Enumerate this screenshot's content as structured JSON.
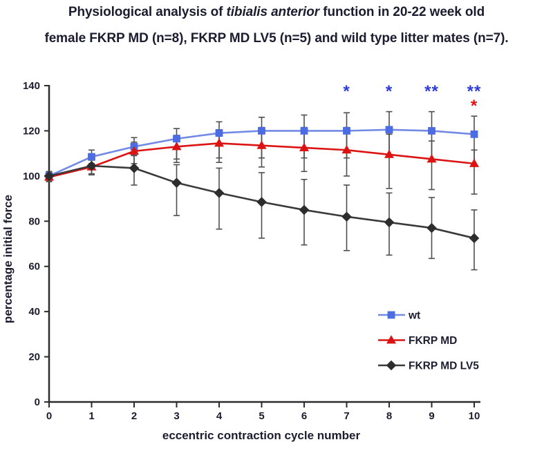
{
  "title": {
    "line1_pre": "Physiological analysis of ",
    "line1_italic": "tibialis anterior",
    "line1_post": " function in 20-22 week old",
    "line2": "female FKRP MD (n=8), FKRP MD LV5 (n=5) and wild type litter mates (n=7)."
  },
  "colors": {
    "text": "#1c1c30",
    "axis": "#2b2b2b",
    "error_bar": "#4f4f4f",
    "annotation_blue": "#2e3cd9",
    "annotation_red": "#e81010",
    "background": "#ffffff"
  },
  "chart_data": {
    "type": "line",
    "title": "Physiological analysis of tibialis anterior function in 20-22 week old female FKRP MD (n=8), FKRP MD LV5 (n=5) and wild type litter mates (n=7).",
    "xlabel": "eccentric contraction cycle number",
    "ylabel": "percentage initial force",
    "x": [
      0,
      1,
      2,
      3,
      4,
      5,
      6,
      7,
      8,
      9,
      10
    ],
    "xlim": [
      0,
      10
    ],
    "ylim": [
      0,
      140
    ],
    "ytick_step": 20,
    "yticks": [
      0,
      20,
      40,
      60,
      80,
      100,
      120,
      140
    ],
    "grid": false,
    "legend_position": "inside right",
    "error_bars": true,
    "series": [
      {
        "name": "wt",
        "marker": "square",
        "line_color": "#7389e6",
        "marker_color": "#4b6ce2",
        "values": [
          100,
          108.5,
          113,
          116.5,
          119,
          120,
          120,
          120,
          120.5,
          120,
          118.5
        ],
        "err_up": [
          2,
          3,
          4,
          4.5,
          5,
          6,
          7,
          8,
          8,
          8.5,
          8
        ],
        "err_down": [
          2,
          3,
          4,
          9,
          11,
          12,
          12,
          12,
          12,
          12.5,
          14
        ]
      },
      {
        "name": "FKRP MD",
        "marker": "triangle",
        "line_color": "#dc1313",
        "marker_color": "#dc1313",
        "values": [
          99.5,
          104,
          111,
          113,
          114.5,
          113.5,
          112.5,
          111.5,
          109.5,
          107.5,
          105.5
        ],
        "err_up": [
          2,
          3,
          4,
          5,
          6,
          8,
          9,
          10,
          9,
          8,
          6
        ],
        "err_down": [
          2,
          3.5,
          5.5,
          7,
          8.5,
          9.5,
          10.5,
          11.5,
          15,
          13.5,
          13.5
        ]
      },
      {
        "name": "FKRP MD LV5",
        "marker": "diamond",
        "line_color": "#3a3a3a",
        "marker_color": "#2d2d2d",
        "values": [
          100,
          104.5,
          103.5,
          97,
          92.5,
          88.5,
          85,
          82,
          79.5,
          77,
          72.5
        ],
        "err_up": [
          2,
          3.5,
          6,
          8,
          11,
          13,
          13.5,
          14,
          13,
          13.5,
          12.5
        ],
        "err_down": [
          2,
          3.5,
          7.5,
          14.5,
          16,
          16,
          15.5,
          15,
          14.5,
          13.5,
          14
        ]
      }
    ],
    "annotations": [
      {
        "x": 7,
        "label": "*",
        "color": "#2e3cd9",
        "row": 1,
        "applies_to": "wt"
      },
      {
        "x": 8,
        "label": "*",
        "color": "#2e3cd9",
        "row": 1,
        "applies_to": "wt"
      },
      {
        "x": 9,
        "label": "**",
        "color": "#2e3cd9",
        "row": 1,
        "applies_to": "wt"
      },
      {
        "x": 10,
        "label": "**",
        "color": "#2e3cd9",
        "row": 1,
        "applies_to": "wt"
      },
      {
        "x": 10,
        "label": "*",
        "color": "#e81010",
        "row": 2,
        "applies_to": "FKRP MD"
      }
    ]
  }
}
